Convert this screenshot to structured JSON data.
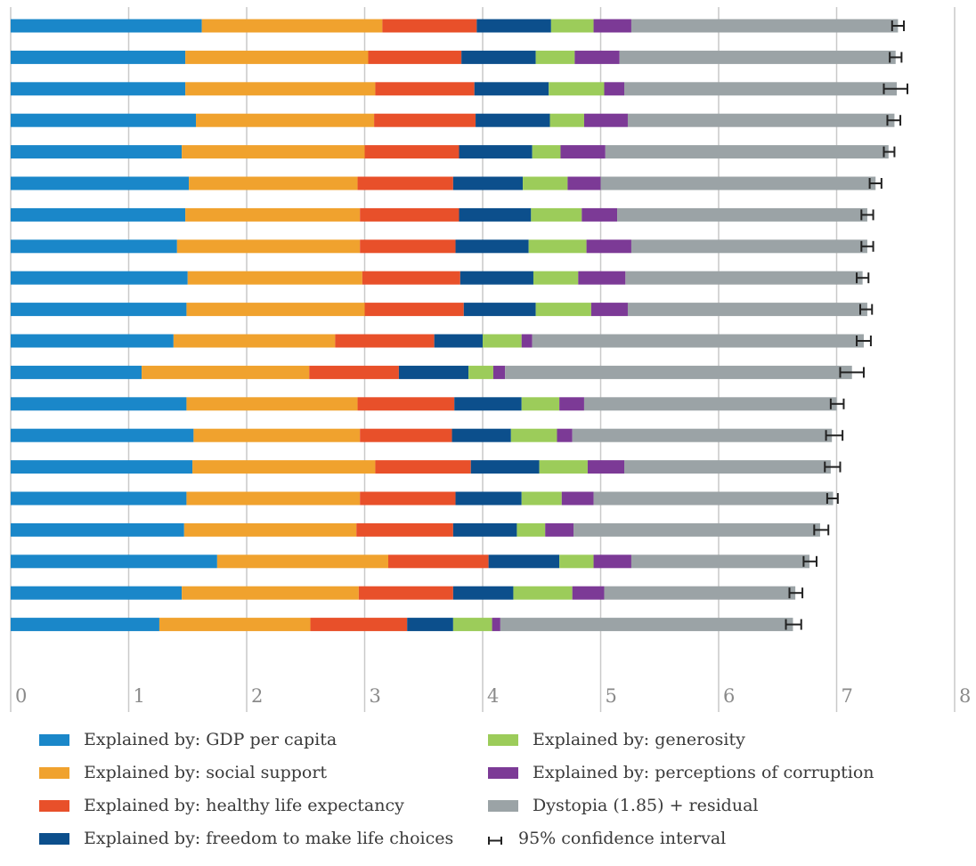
{
  "chart_data": {
    "type": "bar",
    "orientation": "horizontal",
    "stacked": true,
    "xlim": [
      0,
      8
    ],
    "x_ticks": [
      "0",
      "1",
      "2",
      "3",
      "4",
      "5",
      "6",
      "7",
      "8"
    ],
    "grid": true,
    "legend_position": "bottom",
    "series": [
      {
        "name": "Explained by: GDP per capita",
        "color": "#1a87c9",
        "values": [
          1.62,
          1.48,
          1.48,
          1.57,
          1.45,
          1.51,
          1.48,
          1.41,
          1.5,
          1.49,
          1.38,
          1.11,
          1.49,
          1.55,
          1.54,
          1.49,
          1.47,
          1.75,
          1.45,
          1.26
        ]
      },
      {
        "name": "Explained by: social support",
        "color": "#f0a22e",
        "values": [
          1.53,
          1.55,
          1.61,
          1.51,
          1.55,
          1.43,
          1.48,
          1.55,
          1.48,
          1.51,
          1.37,
          1.42,
          1.45,
          1.41,
          1.55,
          1.47,
          1.46,
          1.45,
          1.5,
          1.28
        ]
      },
      {
        "name": "Explained by: healthy life expectancy",
        "color": "#e8502a",
        "values": [
          0.8,
          0.79,
          0.84,
          0.86,
          0.8,
          0.81,
          0.84,
          0.81,
          0.83,
          0.84,
          0.84,
          0.76,
          0.82,
          0.78,
          0.81,
          0.81,
          0.82,
          0.85,
          0.8,
          0.82
        ]
      },
      {
        "name": "Explained by: freedom to make life choices",
        "color": "#0c4f8c",
        "values": [
          0.63,
          0.63,
          0.63,
          0.63,
          0.62,
          0.59,
          0.61,
          0.62,
          0.62,
          0.61,
          0.41,
          0.59,
          0.57,
          0.5,
          0.58,
          0.56,
          0.54,
          0.6,
          0.51,
          0.39
        ]
      },
      {
        "name": "Explained by: generosity",
        "color": "#9ccc5a",
        "values": [
          0.36,
          0.33,
          0.47,
          0.29,
          0.24,
          0.38,
          0.43,
          0.49,
          0.38,
          0.47,
          0.33,
          0.21,
          0.32,
          0.39,
          0.41,
          0.34,
          0.24,
          0.29,
          0.5,
          0.33
        ]
      },
      {
        "name": "Explained by: perceptions of corruption",
        "color": "#7c3a96",
        "values": [
          0.32,
          0.38,
          0.17,
          0.37,
          0.38,
          0.28,
          0.3,
          0.38,
          0.4,
          0.31,
          0.09,
          0.1,
          0.21,
          0.13,
          0.31,
          0.27,
          0.24,
          0.32,
          0.27,
          0.07
        ]
      },
      {
        "name": "Dystopia (1.85) + residual",
        "color": "#9ba3a6",
        "values": [
          2.26,
          2.34,
          2.31,
          2.26,
          2.4,
          2.33,
          2.12,
          2.0,
          2.01,
          2.03,
          2.81,
          2.94,
          2.14,
          2.2,
          1.75,
          2.03,
          2.09,
          1.51,
          1.62,
          2.48
        ]
      }
    ],
    "totals": [
      7.52,
      7.5,
      7.51,
      7.49,
      7.44,
      7.33,
      7.26,
      7.26,
      7.22,
      7.26,
      7.23,
      7.13,
      7.0,
      6.96,
      6.95,
      6.97,
      6.86,
      6.77,
      6.65,
      6.63
    ],
    "ci": [
      [
        7.47,
        7.57
      ],
      [
        7.45,
        7.55
      ],
      [
        7.4,
        7.6
      ],
      [
        7.43,
        7.54
      ],
      [
        7.4,
        7.49
      ],
      [
        7.28,
        7.38
      ],
      [
        7.21,
        7.31
      ],
      [
        7.21,
        7.31
      ],
      [
        7.17,
        7.27
      ],
      [
        7.2,
        7.3
      ],
      [
        7.17,
        7.29
      ],
      [
        7.03,
        7.23
      ],
      [
        6.95,
        7.06
      ],
      [
        6.91,
        7.05
      ],
      [
        6.9,
        7.03
      ],
      [
        6.92,
        7.01
      ],
      [
        6.81,
        6.93
      ],
      [
        6.72,
        6.83
      ],
      [
        6.6,
        6.71
      ],
      [
        6.57,
        6.7
      ]
    ],
    "ci_color": "#222222"
  },
  "legend": {
    "items": [
      {
        "label": "Explained by: GDP per capita",
        "color": "#1a87c9"
      },
      {
        "label": "Explained by: social support",
        "color": "#f0a22e"
      },
      {
        "label": "Explained by: healthy life expectancy",
        "color": "#e8502a"
      },
      {
        "label": "Explained by: freedom to make life choices",
        "color": "#0c4f8c"
      },
      {
        "label": "Explained by: generosity",
        "color": "#9ccc5a"
      },
      {
        "label": "Explained by: perceptions of corruption",
        "color": "#7c3a96"
      },
      {
        "label": "Dystopia (1.85) + residual",
        "color": "#9ba3a6"
      },
      {
        "label": "95% confidence interval",
        "color": "#222222"
      }
    ]
  },
  "colors": {
    "gridline": "#c9c9c9",
    "tick_label": "#8a8a8a"
  }
}
